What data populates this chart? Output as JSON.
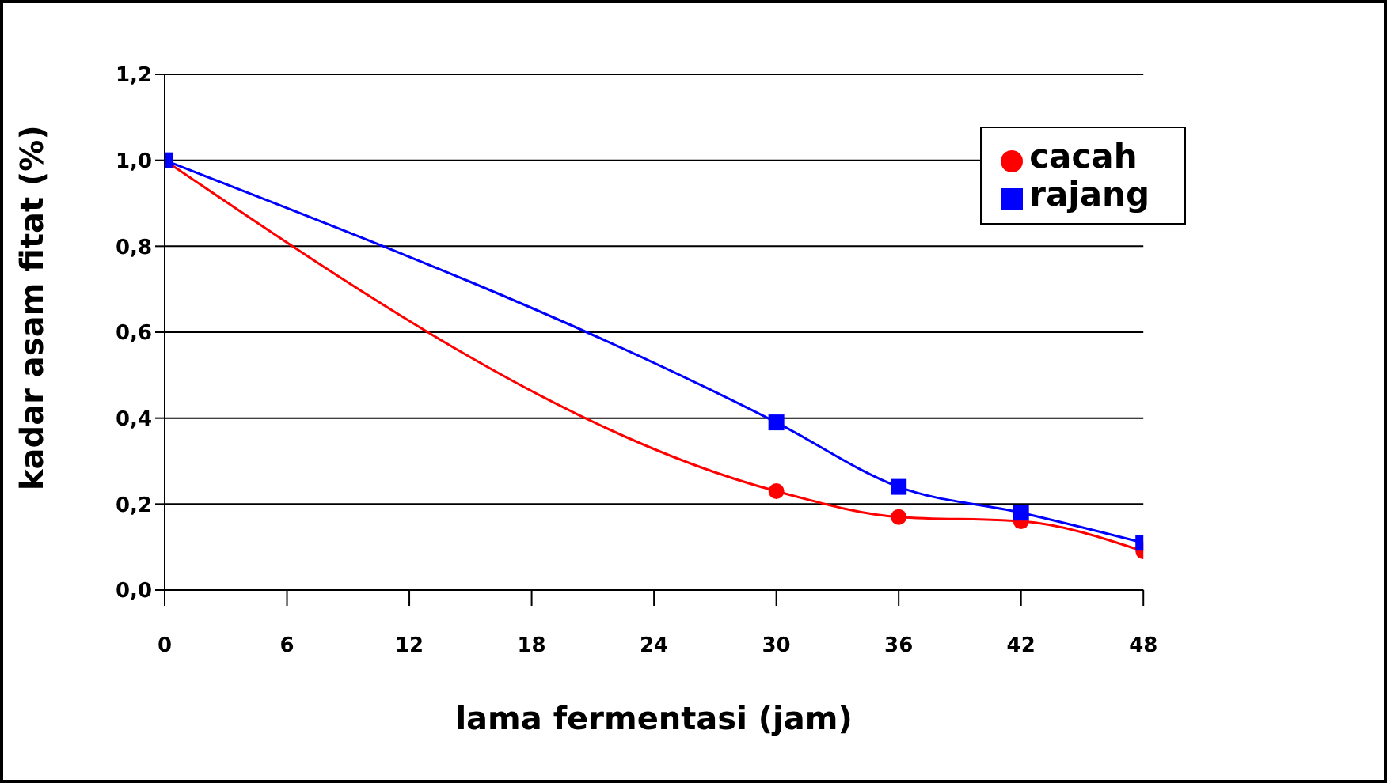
{
  "chart_data": {
    "type": "line",
    "xlabel": "lama fermentasi (jam)",
    "ylabel": "kadar asam fitat (%)",
    "x": [
      0,
      30,
      36,
      42,
      48
    ],
    "series": [
      {
        "name": "cacah",
        "color": "#ff0000",
        "marker": "circle",
        "values": [
          1.0,
          0.23,
          0.17,
          0.16,
          0.09
        ]
      },
      {
        "name": "rajang",
        "color": "#0000ff",
        "marker": "square",
        "values": [
          1.0,
          0.39,
          0.24,
          0.18,
          0.11
        ]
      }
    ],
    "xlim": [
      0,
      48
    ],
    "xticks": [
      0,
      6,
      12,
      18,
      24,
      30,
      36,
      42,
      48
    ],
    "ylim": [
      0,
      1.2
    ],
    "yticks": [
      {
        "value": 0,
        "label": "0,0"
      },
      {
        "value": 0.2,
        "label": "0,2"
      },
      {
        "value": 0.4,
        "label": "0,4"
      },
      {
        "value": 0.6,
        "label": "0,6"
      },
      {
        "value": 0.8,
        "label": "0,8"
      },
      {
        "value": 1,
        "label": "1,0"
      },
      {
        "value": 1.2,
        "label": "1,2"
      }
    ],
    "grid": "y",
    "legend": "top right"
  }
}
